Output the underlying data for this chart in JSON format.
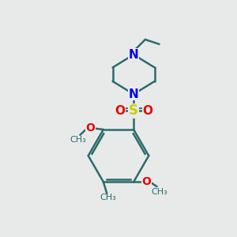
{
  "bg_color": "#e8eaea",
  "bond_color": "#2d6b6b",
  "N_color": "#0000ee",
  "S_color": "#cccc00",
  "O_color": "#ee0000",
  "bond_width": 1.8,
  "fig_size": [
    3.0,
    3.0
  ],
  "dpi": 100,
  "xlim": [
    0,
    10
  ],
  "ylim": [
    0,
    10
  ]
}
